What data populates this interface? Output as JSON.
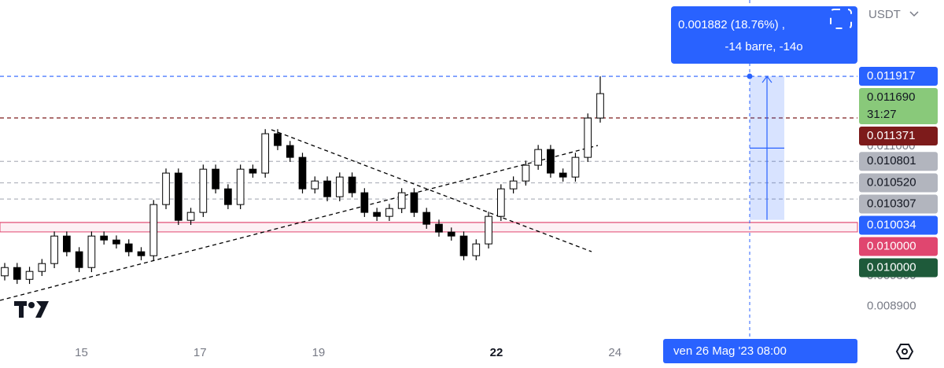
{
  "chart_data": {
    "type": "candlestick",
    "currency": "USDT",
    "open": [
      0.0093,
      0.009409,
      0.009254,
      0.009358,
      0.009461,
      0.009822,
      0.009616,
      0.009409,
      0.009822,
      0.00977,
      0.009719,
      0.009616,
      0.009564,
      0.010235,
      0.010648,
      0.010028,
      0.010132,
      0.010699,
      0.010441,
      0.010235,
      0.010699,
      0.010648,
      0.011164,
      0.011009,
      0.010854,
      0.010441,
      0.010544,
      0.010338,
      0.010596,
      0.01039,
      0.010132,
      0.01008,
      0.010183,
      0.01039,
      0.010132,
      0.009977,
      0.009874,
      0.009822,
      0.009564,
      0.009719,
      0.01008,
      0.010441,
      0.010544,
      0.010751,
      0.010957,
      0.010648,
      0.010596,
      0.010854,
      0.01137
    ],
    "high": [
      0.009469,
      0.009469,
      0.009418,
      0.009521,
      0.009882,
      0.009882,
      0.009676,
      0.009882,
      0.009882,
      0.00983,
      0.009779,
      0.009676,
      0.010295,
      0.010708,
      0.010708,
      0.010192,
      0.010759,
      0.010759,
      0.010501,
      0.010759,
      0.010759,
      0.011224,
      0.011224,
      0.011069,
      0.010914,
      0.010604,
      0.010604,
      0.010656,
      0.010656,
      0.01045,
      0.010192,
      0.010243,
      0.01045,
      0.01045,
      0.010192,
      0.010037,
      0.009934,
      0.009882,
      0.009779,
      0.01014,
      0.010501,
      0.010604,
      0.010811,
      0.011017,
      0.011017,
      0.010708,
      0.010914,
      0.01143,
      0.011917
    ],
    "low": [
      0.00924,
      0.009194,
      0.009194,
      0.009298,
      0.009401,
      0.009556,
      0.009349,
      0.009349,
      0.00971,
      0.009659,
      0.009556,
      0.009504,
      0.009504,
      0.010175,
      0.009968,
      0.009968,
      0.010072,
      0.010381,
      0.010175,
      0.010175,
      0.010588,
      0.010588,
      0.010949,
      0.010794,
      0.010381,
      0.010381,
      0.010278,
      0.010278,
      0.01033,
      0.010072,
      0.01002,
      0.01002,
      0.010123,
      0.010072,
      0.009917,
      0.009814,
      0.009762,
      0.009504,
      0.009504,
      0.009659,
      0.01002,
      0.010381,
      0.010484,
      0.010691,
      0.010588,
      0.010536,
      0.010536,
      0.010794,
      0.01131
    ],
    "close": [
      0.009409,
      0.009254,
      0.009358,
      0.009461,
      0.009822,
      0.009616,
      0.009409,
      0.009822,
      0.00977,
      0.009719,
      0.009616,
      0.009564,
      0.010235,
      0.010648,
      0.010028,
      0.010132,
      0.010699,
      0.010441,
      0.010235,
      0.010699,
      0.010648,
      0.011164,
      0.011009,
      0.010854,
      0.010441,
      0.010544,
      0.010338,
      0.010596,
      0.01039,
      0.010132,
      0.01008,
      0.010183,
      0.01039,
      0.010132,
      0.009977,
      0.009874,
      0.009822,
      0.009564,
      0.009719,
      0.01008,
      0.010441,
      0.010544,
      0.010751,
      0.010957,
      0.010648,
      0.010596,
      0.010854,
      0.01137,
      0.01169
    ],
    "up_color": "#ffffff",
    "down_color": "#000000",
    "ylim": [
      0.00838,
      0.012918
    ],
    "yticks": [
      {
        "value": 0.011,
        "label": "0.011000"
      },
      {
        "value": 0.0093,
        "label": "0.009300"
      },
      {
        "value": 0.0089,
        "label": "0.008900"
      }
    ],
    "xlim": [
      13.627,
      28.09
    ],
    "xticks": [
      15,
      17,
      19,
      22,
      24
    ],
    "price_lines": [
      {
        "value": 0.011917,
        "label": "0.011917",
        "color": "#2962ff",
        "line": "dashed"
      },
      {
        "value": 0.01169,
        "label": "0.011690",
        "countdown": "31:27",
        "color": "#89c97a",
        "line": "none"
      },
      {
        "value": 0.011371,
        "label": "0.011371",
        "color": "#7d1b1b",
        "line": "dashed"
      },
      {
        "value": 0.010801,
        "label": "0.010801",
        "color": "#b2b5be",
        "line": "dashed"
      },
      {
        "value": 0.01052,
        "label": "0.010520",
        "color": "#b2b5be",
        "line": "dashed"
      },
      {
        "value": 0.010307,
        "label": "0.010307",
        "color": "#b2b5be",
        "line": "dashed"
      },
      {
        "value": 0.010034,
        "label": "0.010034",
        "color": "#2962ff",
        "line": "none"
      },
      {
        "value": 0.01,
        "label": "0.010000",
        "color": "#e0466f",
        "line": "solid"
      },
      {
        "value": 0.01,
        "label": "0.010000",
        "color": "#1e5a3a",
        "line": "none"
      }
    ],
    "measure": {
      "top": 0.011917,
      "bottom": 0.010034,
      "line1": "0.001882 (18.76%) ,",
      "line2": "-14 barre, -14o",
      "date_label": "ven 26 Mag '23   08:00"
    }
  }
}
